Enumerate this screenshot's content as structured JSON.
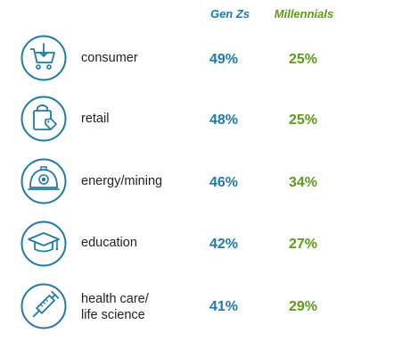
{
  "colors": {
    "gen_z": "#1f7aa6",
    "millennials": "#5b9a1a",
    "icon": "#1f7aa6"
  },
  "chart_data": {
    "type": "table",
    "series": [
      {
        "name": "Gen Zs",
        "values": [
          "49%",
          "48%",
          "46%",
          "42%",
          "41%"
        ]
      },
      {
        "name": "Millennials",
        "values": [
          "25%",
          "25%",
          "34%",
          "27%",
          "29%"
        ]
      }
    ],
    "rows": [
      {
        "label_lines": [
          "consumer"
        ],
        "icon": "shopping-cart-icon",
        "gen_z": "49%",
        "millennials": "25%"
      },
      {
        "label_lines": [
          "retail"
        ],
        "icon": "shopping-bag-tag-icon",
        "gen_z": "48%",
        "millennials": "25%"
      },
      {
        "label_lines": [
          "energy/mining"
        ],
        "icon": "mining-helmet-icon",
        "gen_z": "46%",
        "millennials": "34%"
      },
      {
        "label_lines": [
          "education"
        ],
        "icon": "graduation-cap-icon",
        "gen_z": "42%",
        "millennials": "27%"
      },
      {
        "label_lines": [
          "health care/",
          "life science"
        ],
        "icon": "syringe-icon",
        "gen_z": "41%",
        "millennials": "29%"
      }
    ]
  }
}
